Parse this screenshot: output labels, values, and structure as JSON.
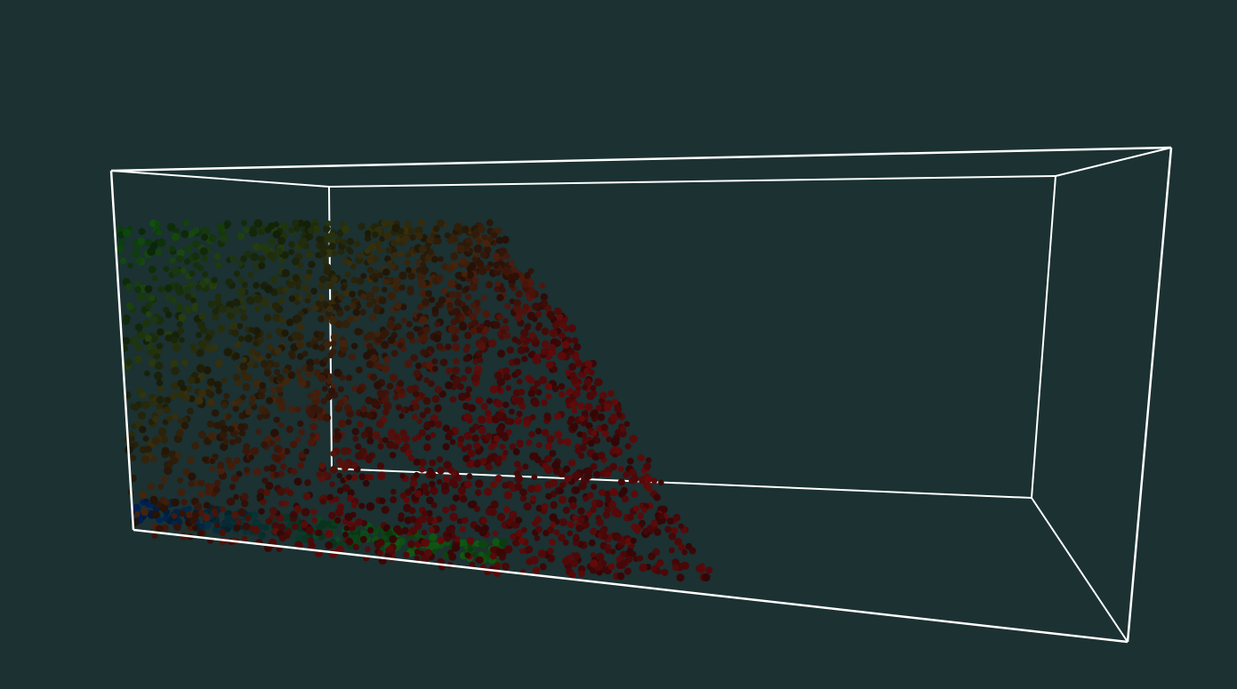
{
  "scene": {
    "background_color": "#1b3132",
    "box_edge_color": "#ffffff",
    "particle_color_scale": [
      "#001a4a",
      "#0e4a10",
      "#5a0a0a"
    ]
  }
}
